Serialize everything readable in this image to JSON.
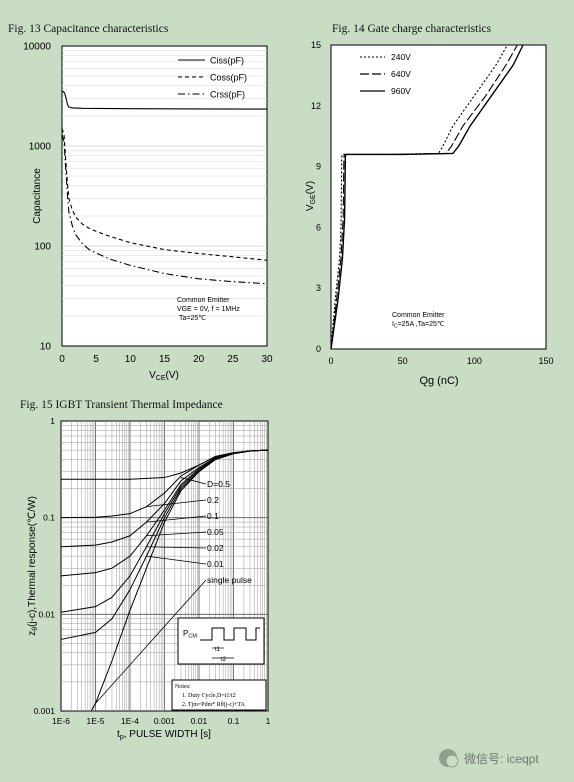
{
  "chart_data": [
    {
      "type": "line",
      "title": "Fig. 13  Capacitance characteristics",
      "xlabel_main": "V",
      "xlabel_sub": "CE",
      "xlabel_unit": "(V)",
      "ylabel": "Capacitance",
      "xlim": [
        0,
        30
      ],
      "ylim": [
        10,
        10000
      ],
      "yscale": "log",
      "x_ticks": [
        "0",
        "5",
        "10",
        "15",
        "20",
        "25",
        "30"
      ],
      "y_ticks": [
        "10",
        "100",
        "1000",
        "10000"
      ],
      "legend": {
        "placement": "top-right",
        "entries": [
          "Ciss(pF)",
          "Coss(pF)",
          "Crss(pF)"
        ]
      },
      "annotation": [
        "Common Emitter",
        "VGE = 0V, f = 1MHz",
        "Ta=25℃"
      ],
      "series": [
        {
          "name": "Ciss(pF)",
          "style": "solid",
          "x": [
            0,
            0.2,
            0.4,
            0.6,
            0.8,
            1,
            1.5,
            3,
            10,
            20,
            30
          ],
          "y": [
            3500,
            3500,
            3350,
            3000,
            2600,
            2450,
            2400,
            2380,
            2360,
            2350,
            2340
          ]
        },
        {
          "name": "Coss(pF)",
          "style": "dashed",
          "x": [
            0,
            0.3,
            0.5,
            0.8,
            1,
            1.5,
            2,
            3,
            4,
            5,
            7,
            10,
            15,
            20,
            25,
            30
          ],
          "y": [
            1500,
            1300,
            800,
            420,
            300,
            230,
            195,
            165,
            150,
            140,
            125,
            108,
            92,
            84,
            78,
            72
          ]
        },
        {
          "name": "Crss(pF)",
          "style": "dashdot",
          "x": [
            0,
            0.3,
            0.5,
            0.8,
            1,
            1.5,
            2,
            3,
            4,
            5,
            7,
            10,
            15,
            20,
            25,
            30
          ],
          "y": [
            1300,
            1100,
            650,
            320,
            220,
            160,
            130,
            105,
            92,
            85,
            74,
            64,
            53,
            47,
            44,
            42
          ]
        }
      ]
    },
    {
      "type": "line",
      "title": "Fig. 14  Gate charge characteristics",
      "xlabel": "Qg (nC)",
      "ylabel_main": "V",
      "ylabel_sub": "GE",
      "ylabel_unit": "(V)",
      "xlim": [
        0,
        150
      ],
      "ylim": [
        0,
        15
      ],
      "x_ticks": [
        "0",
        "50",
        "100",
        "150"
      ],
      "y_ticks": [
        "0",
        "3",
        "6",
        "9",
        "12",
        "15"
      ],
      "legend": {
        "placement": "top-left",
        "entries": [
          "240V",
          "640V",
          "960V"
        ]
      },
      "annotation": {
        "line1": "Common Emitter",
        "line2_pre": "I",
        "line2_sub": "C",
        "line2_post": "=25A ,Ta=25℃"
      },
      "series": [
        {
          "name": "240V",
          "style": "dotted",
          "x": [
            0,
            3,
            6,
            7,
            7.5,
            8,
            40,
            75,
            78,
            85,
            100,
            115,
            123
          ],
          "y": [
            0,
            2.5,
            4.5,
            6,
            9.5,
            9.6,
            9.6,
            9.65,
            10,
            11,
            12.5,
            14,
            15
          ]
        },
        {
          "name": "640V",
          "style": "dashed",
          "x": [
            0,
            4,
            7,
            8.5,
            9,
            9.5,
            45,
            80,
            84,
            92,
            108,
            122,
            130
          ],
          "y": [
            0,
            2.5,
            4.5,
            6.5,
            9.5,
            9.6,
            9.6,
            9.65,
            10,
            11,
            12.5,
            14,
            15
          ]
        },
        {
          "name": "960V",
          "style": "solid",
          "x": [
            0,
            5,
            8,
            9.5,
            10,
            10.5,
            50,
            85,
            89,
            97,
            112,
            127,
            134
          ],
          "y": [
            0,
            2.5,
            4.5,
            6.5,
            9.5,
            9.6,
            9.6,
            9.65,
            10,
            11,
            12.5,
            14,
            15
          ]
        }
      ]
    },
    {
      "type": "line",
      "title": "Fig. 15 IGBT Transient Thermal Impedance",
      "xlabel_main": "t",
      "xlabel_sub": "p",
      "xlabel_unit": ", PULSE WIDTH [s]",
      "ylabel_main": "z",
      "ylabel_sub": "θ",
      "ylabel_unit": "(j-c),Thermal  response(℃/W)",
      "xscale": "log",
      "yscale": "log",
      "xlim": [
        1e-06,
        1
      ],
      "ylim": [
        0.001,
        1
      ],
      "x_ticks": [
        "1E-6",
        "1E-5",
        "1E-4",
        "0.001",
        "0.01",
        "0.1",
        "1"
      ],
      "y_ticks": [
        "0.001",
        "0.01",
        "0.1",
        "1"
      ],
      "curve_labels": [
        "D=0.5",
        "0.2",
        "0.1",
        "0.05",
        "0.02",
        "0.01",
        "single pulse"
      ],
      "inset": {
        "symbol_main": "P",
        "symbol_sub": "CM",
        "t1": "t1",
        "t2": "t2"
      },
      "notes": [
        "Notes:",
        "1.    Duty Cycle,D=t1/t2",
        "2.    Tjm=Pdm* Rθ(j-c)+TA"
      ],
      "series": [
        {
          "name": "single pulse",
          "x": [
            7.5e-06,
            1e-05,
            3e-05,
            0.0001,
            0.0003,
            0.001,
            0.003,
            0.01,
            0.03,
            0.1,
            0.3,
            1
          ],
          "y": [
            0.001,
            0.0012,
            0.0033,
            0.011,
            0.03,
            0.09,
            0.19,
            0.3,
            0.4,
            0.46,
            0.49,
            0.5
          ]
        },
        {
          "name": "0.01",
          "x": [
            1e-06,
            1e-05,
            3e-05,
            0.0001,
            0.0003,
            0.001,
            0.003,
            0.01,
            0.03,
            0.1,
            0.3,
            1
          ],
          "y": [
            0.0055,
            0.0065,
            0.009,
            0.018,
            0.04,
            0.1,
            0.2,
            0.3,
            0.4,
            0.46,
            0.49,
            0.5
          ]
        },
        {
          "name": "0.02",
          "x": [
            1e-06,
            1e-05,
            3e-05,
            0.0001,
            0.0003,
            0.001,
            0.003,
            0.01,
            0.03,
            0.1,
            0.3,
            1
          ],
          "y": [
            0.0105,
            0.012,
            0.015,
            0.025,
            0.05,
            0.11,
            0.21,
            0.31,
            0.41,
            0.46,
            0.49,
            0.5
          ]
        },
        {
          "name": "0.05",
          "x": [
            1e-06,
            1e-05,
            3e-05,
            0.0001,
            0.0003,
            0.001,
            0.003,
            0.01,
            0.03,
            0.1,
            0.3,
            1
          ],
          "y": [
            0.025,
            0.027,
            0.03,
            0.04,
            0.065,
            0.12,
            0.22,
            0.32,
            0.41,
            0.46,
            0.49,
            0.5
          ]
        },
        {
          "name": "0.1",
          "x": [
            1e-06,
            1e-05,
            3e-05,
            0.0001,
            0.0003,
            0.001,
            0.003,
            0.01,
            0.03,
            0.1,
            0.3,
            1
          ],
          "y": [
            0.05,
            0.052,
            0.056,
            0.065,
            0.09,
            0.14,
            0.24,
            0.33,
            0.42,
            0.47,
            0.49,
            0.5
          ]
        },
        {
          "name": "0.2",
          "x": [
            1e-06,
            1e-05,
            3e-05,
            0.0001,
            0.0003,
            0.001,
            0.003,
            0.01,
            0.03,
            0.1,
            0.3,
            1
          ],
          "y": [
            0.1,
            0.101,
            0.104,
            0.11,
            0.13,
            0.18,
            0.27,
            0.35,
            0.43,
            0.47,
            0.49,
            0.5
          ]
        },
        {
          "name": "D=0.5",
          "x": [
            1e-06,
            1e-05,
            0.0001,
            0.001,
            0.003,
            0.01,
            0.03,
            0.1,
            0.3,
            1
          ],
          "y": [
            0.25,
            0.25,
            0.25,
            0.26,
            0.29,
            0.35,
            0.43,
            0.47,
            0.49,
            0.5
          ]
        }
      ]
    }
  ],
  "watermark": {
    "icon": "wechat-icon",
    "text": "微信号: iceqpt"
  }
}
